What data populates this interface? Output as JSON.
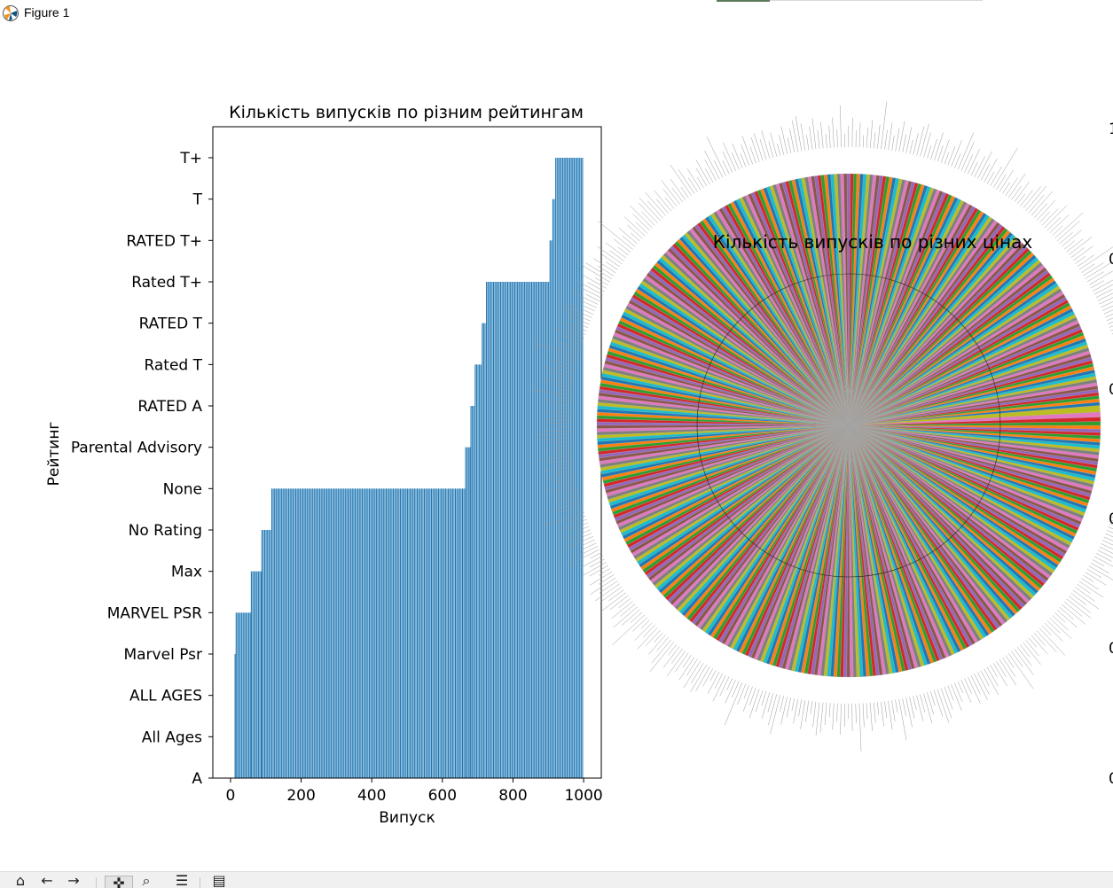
{
  "window": {
    "title": "Figure 1"
  },
  "toolbar": {
    "buttons": [
      {
        "name": "home-button",
        "icon": "home-icon",
        "glyph": "⌂"
      },
      {
        "name": "back-button",
        "icon": "back-arrow-icon",
        "glyph": "←"
      },
      {
        "name": "forward-button",
        "icon": "forward-arrow-icon",
        "glyph": "→"
      },
      {
        "name": "pan-button",
        "icon": "pan-icon",
        "glyph": "✜"
      },
      {
        "name": "zoom-button",
        "icon": "zoom-icon",
        "glyph": "⌕"
      },
      {
        "name": "configure-subplots-button",
        "icon": "sliders-icon",
        "glyph": "☰"
      },
      {
        "name": "save-button",
        "icon": "save-icon",
        "glyph": "▤"
      }
    ]
  },
  "chart_data": [
    {
      "type": "bar",
      "orientation": "vertical",
      "title": "Кількість випусків по різним рейтингам",
      "xlabel": "Випуск",
      "ylabel": "Рейтинг",
      "xlim": [
        -50,
        1050
      ],
      "xticks": [
        0,
        200,
        400,
        600,
        800,
        1000
      ],
      "yticks": [
        "A",
        "All Ages",
        "ALL AGES",
        "Marvel Psr",
        "MARVEL PSR",
        "Max",
        "No Rating",
        "None",
        "Parental Advisory",
        "RATED A",
        "Rated T",
        "RATED T",
        "Rated T+",
        "RATED T+",
        "T",
        "T+"
      ],
      "bar_color": "#1f77b4",
      "bar_spacing": 4,
      "segments": [
        {
          "x_from": 13,
          "x_to": 15,
          "rating": "Marvel Psr"
        },
        {
          "x_from": 16,
          "x_to": 58,
          "rating": "MARVEL PSR"
        },
        {
          "x_from": 59,
          "x_to": 88,
          "rating": "Max"
        },
        {
          "x_from": 89,
          "x_to": 116,
          "rating": "No Rating"
        },
        {
          "x_from": 117,
          "x_to": 665,
          "rating": "None"
        },
        {
          "x_from": 666,
          "x_to": 680,
          "rating": "Parental Advisory"
        },
        {
          "x_from": 681,
          "x_to": 692,
          "rating": "RATED A"
        },
        {
          "x_from": 693,
          "x_to": 712,
          "rating": "Rated T"
        },
        {
          "x_from": 713,
          "x_to": 724,
          "rating": "RATED T"
        },
        {
          "x_from": 725,
          "x_to": 904,
          "rating": "Rated T+"
        },
        {
          "x_from": 905,
          "x_to": 912,
          "rating": "RATED T+"
        },
        {
          "x_from": 913,
          "x_to": 920,
          "rating": "T"
        },
        {
          "x_from": 921,
          "x_to": 1000,
          "rating": "T+"
        }
      ]
    },
    {
      "type": "pie",
      "title": "Кількість випусків по різних цінах",
      "start_angle_deg": 0,
      "slice_count": 480,
      "palette": [
        "#1f77b4",
        "#ff7f0e",
        "#2ca02c",
        "#d62728",
        "#9467bd",
        "#8c564b",
        "#e377c2",
        "#7f7f7f",
        "#bcbd22",
        "#17becf"
      ],
      "wedge_edge_color": "#aaaaaa",
      "large_slices": [
        {
          "fraction": 0.0042,
          "color": "#bcbd22"
        },
        {
          "fraction": 0.0032,
          "color": "#e377c2"
        },
        {
          "fraction": 0.0028,
          "color": "#d62728"
        },
        {
          "fraction": 0.0025,
          "color": "#2ca02c"
        },
        {
          "fraction": 0.0024,
          "color": "#ff7f0e"
        }
      ],
      "inner_circle_fraction": 0.6,
      "right_axis_tick_labels": [
        "1",
        "0",
        "0",
        "0",
        "0",
        "0"
      ]
    }
  ]
}
